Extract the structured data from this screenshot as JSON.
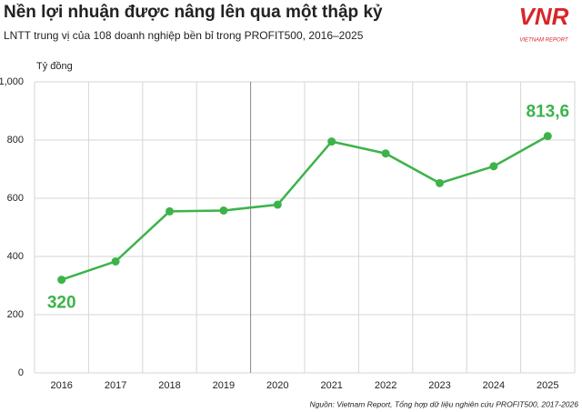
{
  "logo": {
    "mark": "VNR",
    "name": "VIETNAM REPORT"
  },
  "chart_data": {
    "type": "line",
    "title": "Nền lợi nhuận được nâng lên qua một thập kỷ",
    "subtitle": "LNTT trung vị của 108 doanh nghiệp bền bỉ trong PROFIT500, 2016–2025",
    "y_axis_label": "Tỷ đồng",
    "source": "Nguồn: Vietnam Report, Tổng hợp dữ liệu nghiên cứu PROFIT500, 2017-2026",
    "categories": [
      "2016",
      "2017",
      "2018",
      "2019",
      "2020",
      "2021",
      "2022",
      "2023",
      "2024",
      "2025"
    ],
    "series": [
      {
        "name": "LNTT trung vị",
        "color": "#3cb34a",
        "values": [
          320,
          383,
          555,
          558,
          578,
          795,
          754,
          652,
          710,
          813.6
        ],
        "value_labels": [
          "320",
          null,
          null,
          null,
          null,
          null,
          null,
          null,
          null,
          "813,6"
        ]
      }
    ],
    "ylim": [
      0,
      1000
    ],
    "yticks": [
      0,
      200,
      400,
      600,
      800,
      {
        "value": 1000,
        "label": "1,000"
      }
    ],
    "grid": true
  }
}
